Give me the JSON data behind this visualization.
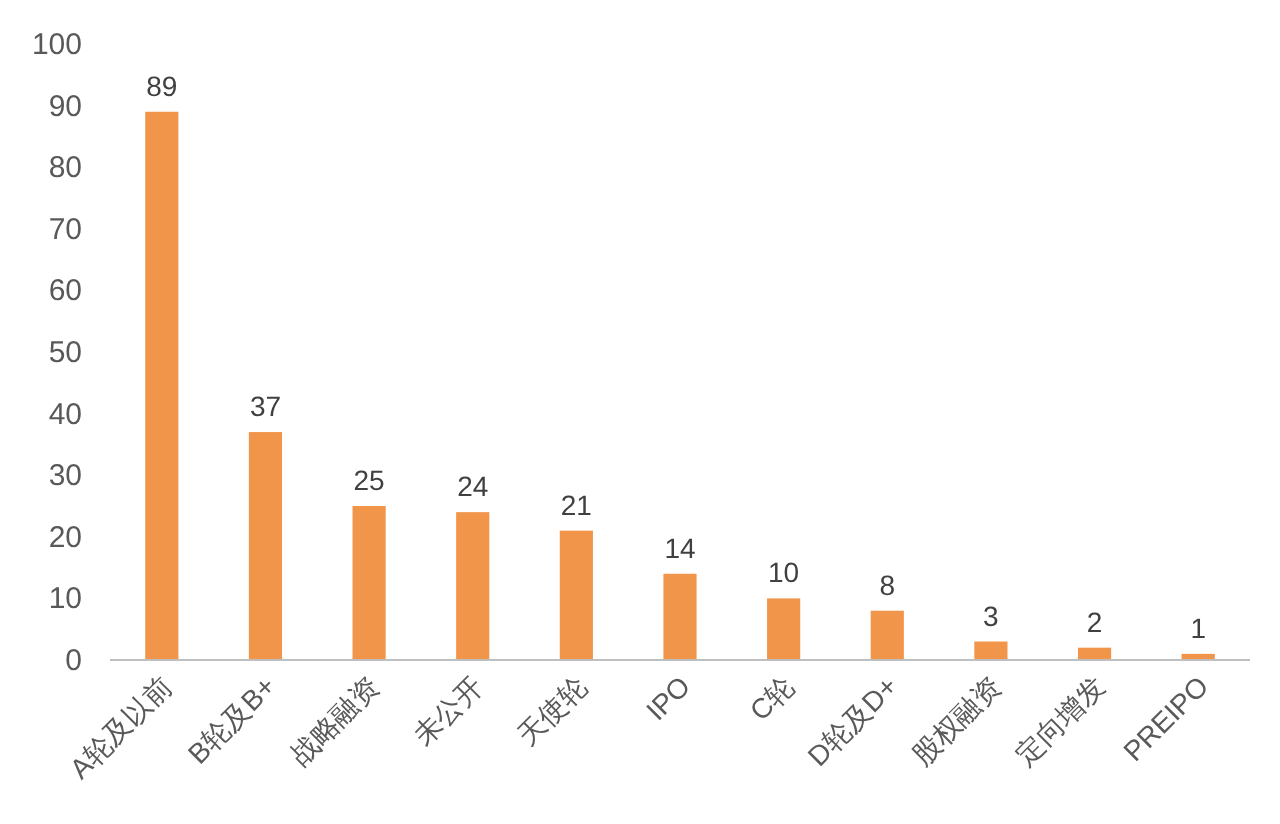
{
  "chart_data": {
    "type": "bar",
    "categories": [
      "A轮及以前",
      "B轮及B+",
      "战略融资",
      "未公开",
      "天使轮",
      "IPO",
      "C轮",
      "D轮及D+",
      "股权融资",
      "定向增发",
      "PREIPO"
    ],
    "values": [
      89,
      37,
      25,
      24,
      21,
      14,
      10,
      8,
      3,
      2,
      1
    ],
    "color": "#f0954a",
    "ylim": [
      0,
      100
    ],
    "yticks": [
      0,
      10,
      20,
      30,
      40,
      50,
      60,
      70,
      80,
      90,
      100
    ],
    "grid": false,
    "data_labels": true
  }
}
